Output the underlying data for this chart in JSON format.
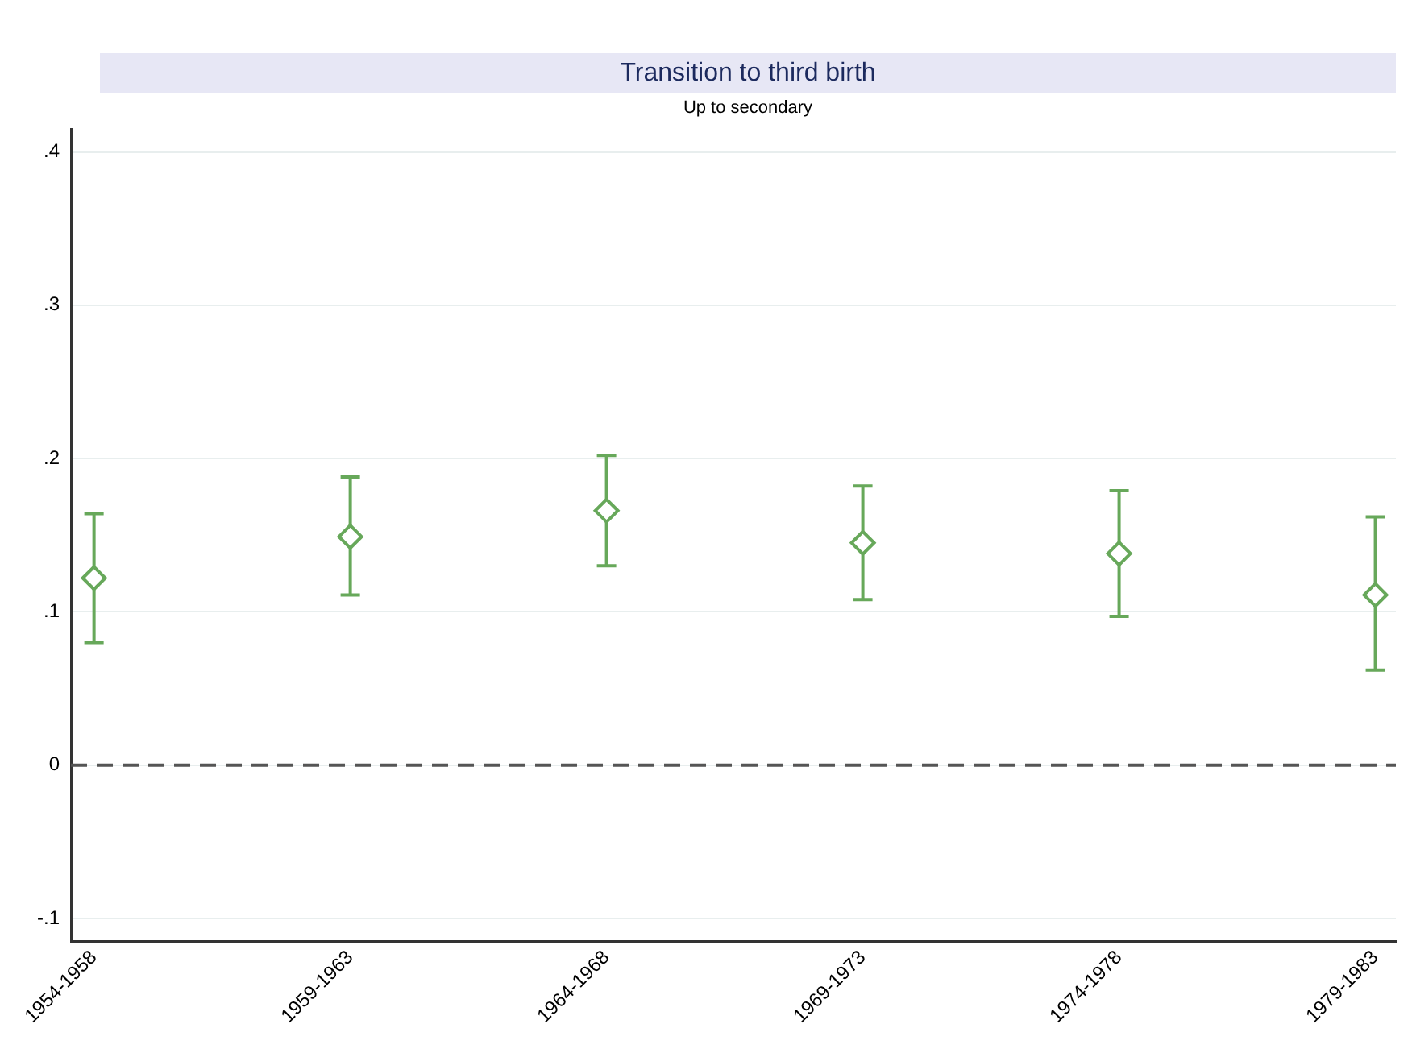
{
  "chart_data": {
    "type": "scatter",
    "title": "Transition to third birth",
    "subtitle": "Up to secondary",
    "categories": [
      "1954-1958",
      "1959-1963",
      "1964-1968",
      "1969-1973",
      "1974-1978",
      "1979-1983"
    ],
    "series": [
      {
        "color": "#67a85a",
        "values": [
          0.122,
          0.149,
          0.166,
          0.145,
          0.138,
          0.111
        ],
        "errors": [
          [
            0.08,
            0.164
          ],
          [
            0.111,
            0.188
          ],
          [
            0.13,
            0.202
          ],
          [
            0.108,
            0.182
          ],
          [
            0.097,
            0.179
          ],
          [
            0.062,
            0.162
          ]
        ]
      }
    ],
    "ylim": [
      -0.115,
      0.415
    ],
    "yticks": [
      {
        "value": -0.1,
        "label": "-.1"
      },
      0,
      {
        "value": 0.1,
        "label": ".1"
      },
      {
        "value": 0.2,
        "label": ".2"
      },
      {
        "value": 0.3,
        "label": ".3"
      },
      {
        "value": 0.4,
        "label": ".4"
      }
    ],
    "ref_lines": [
      {
        "axis": "y",
        "value": 0,
        "color": "#555555",
        "line_style": "dashed"
      }
    ],
    "grid": "y",
    "marker": "diamond",
    "legend": false
  }
}
